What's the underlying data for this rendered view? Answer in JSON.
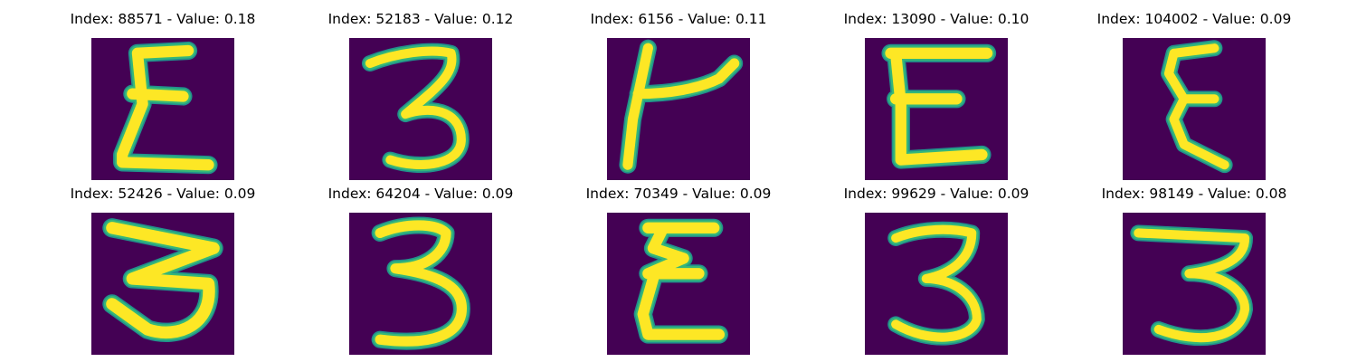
{
  "colors": {
    "background": "#440154",
    "ink_core": "#fde725",
    "ink_edge": "#35b779",
    "ink_fringe": "#21918c"
  },
  "panels": [
    {
      "title": "Index: 88571 - Value: 0.18",
      "glyph": "epsilon"
    },
    {
      "title": "Index: 52183 - Value: 0.12",
      "glyph": "three"
    },
    {
      "title": "Index: 6156 - Value: 0.11",
      "glyph": "k"
    },
    {
      "title": "Index: 13090 - Value: 0.10",
      "glyph": "E"
    },
    {
      "title": "Index: 104002 - Value: 0.09",
      "glyph": "epsilon-thin"
    },
    {
      "title": "Index: 52426 - Value: 0.09",
      "glyph": "three-wide"
    },
    {
      "title": "Index: 64204 - Value: 0.09",
      "glyph": "three"
    },
    {
      "title": "Index: 70349 - Value: 0.09",
      "glyph": "epsilon"
    },
    {
      "title": "Index: 99629 - Value: 0.09",
      "glyph": "three"
    },
    {
      "title": "Index: 98149 - Value: 0.08",
      "glyph": "three"
    }
  ]
}
